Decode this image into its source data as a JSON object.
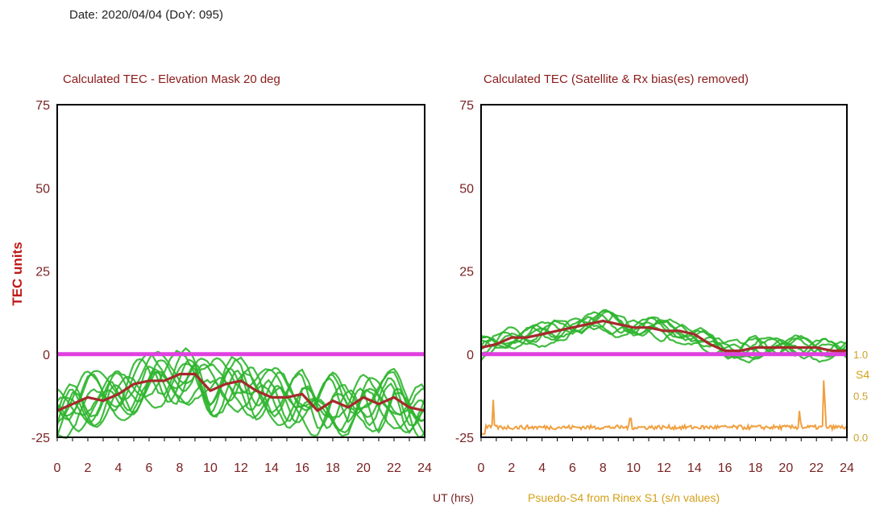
{
  "header": {
    "date_text": "Date: 2020/04/04 (DoY: 095)"
  },
  "colors": {
    "green": "#2db52d",
    "dark_red": "#a52a2a",
    "magenta": "#e040e0",
    "orange": "#f0a040",
    "s4_axis": "#c9a227",
    "axis": "#000000"
  },
  "chart_data": [
    {
      "type": "line",
      "title": "Calculated TEC - Elevation Mask 20 deg",
      "ylabel": "TEC units",
      "xlim": [
        0,
        24
      ],
      "ylim": [
        -25,
        75
      ],
      "x_ticks": [
        0,
        2,
        4,
        6,
        8,
        10,
        12,
        14,
        16,
        18,
        20,
        22,
        24
      ],
      "y_ticks": [
        -25,
        0,
        25,
        50,
        75
      ],
      "zero_line": 0,
      "mean_series": {
        "x": [
          0,
          1,
          2,
          3,
          4,
          5,
          6,
          7,
          8,
          9,
          10,
          11,
          12,
          13,
          14,
          15,
          16,
          17,
          18,
          19,
          20,
          21,
          22,
          23,
          24
        ],
        "y": [
          -17,
          -15,
          -13,
          -14,
          -12,
          -9,
          -8,
          -8,
          -6,
          -6,
          -11,
          -9,
          -8,
          -11,
          -13,
          -13,
          -12,
          -17,
          -14,
          -16,
          -13,
          -15,
          -13,
          -16,
          -17
        ]
      }
    },
    {
      "type": "line",
      "title": "Calculated TEC (Satellite & Rx bias(es) removed)",
      "xlabel": "UT (hrs)",
      "xlim": [
        0,
        24
      ],
      "ylim": [
        -25,
        75
      ],
      "x_ticks": [
        0,
        2,
        4,
        6,
        8,
        10,
        12,
        14,
        16,
        18,
        20,
        22,
        24
      ],
      "y_ticks": [
        -25,
        0,
        25,
        50,
        75
      ],
      "zero_line": 0,
      "mean_series": {
        "x": [
          0,
          1,
          2,
          3,
          4,
          5,
          6,
          7,
          8,
          9,
          10,
          11,
          12,
          13,
          14,
          15,
          16,
          17,
          18,
          19,
          20,
          21,
          22,
          23,
          24
        ],
        "y": [
          2,
          3,
          5,
          5,
          6,
          7,
          8,
          9,
          10,
          9,
          8,
          8,
          7,
          7,
          6,
          3,
          1,
          1,
          2,
          2,
          2,
          2,
          2,
          1,
          1
        ]
      },
      "s4": {
        "label": "Psuedo-S4 from Rinex S1 (s/n values)",
        "axis_label": "S4",
        "ylim": [
          0.0,
          1.0
        ],
        "ticks": [
          "0.0",
          "0.5",
          "1.0"
        ],
        "spikes": [
          {
            "x": 0.8,
            "value": 0.45
          },
          {
            "x": 9.8,
            "value": 0.34
          },
          {
            "x": 20.9,
            "value": 0.38
          },
          {
            "x": 22.5,
            "value": 0.82
          }
        ]
      }
    }
  ]
}
